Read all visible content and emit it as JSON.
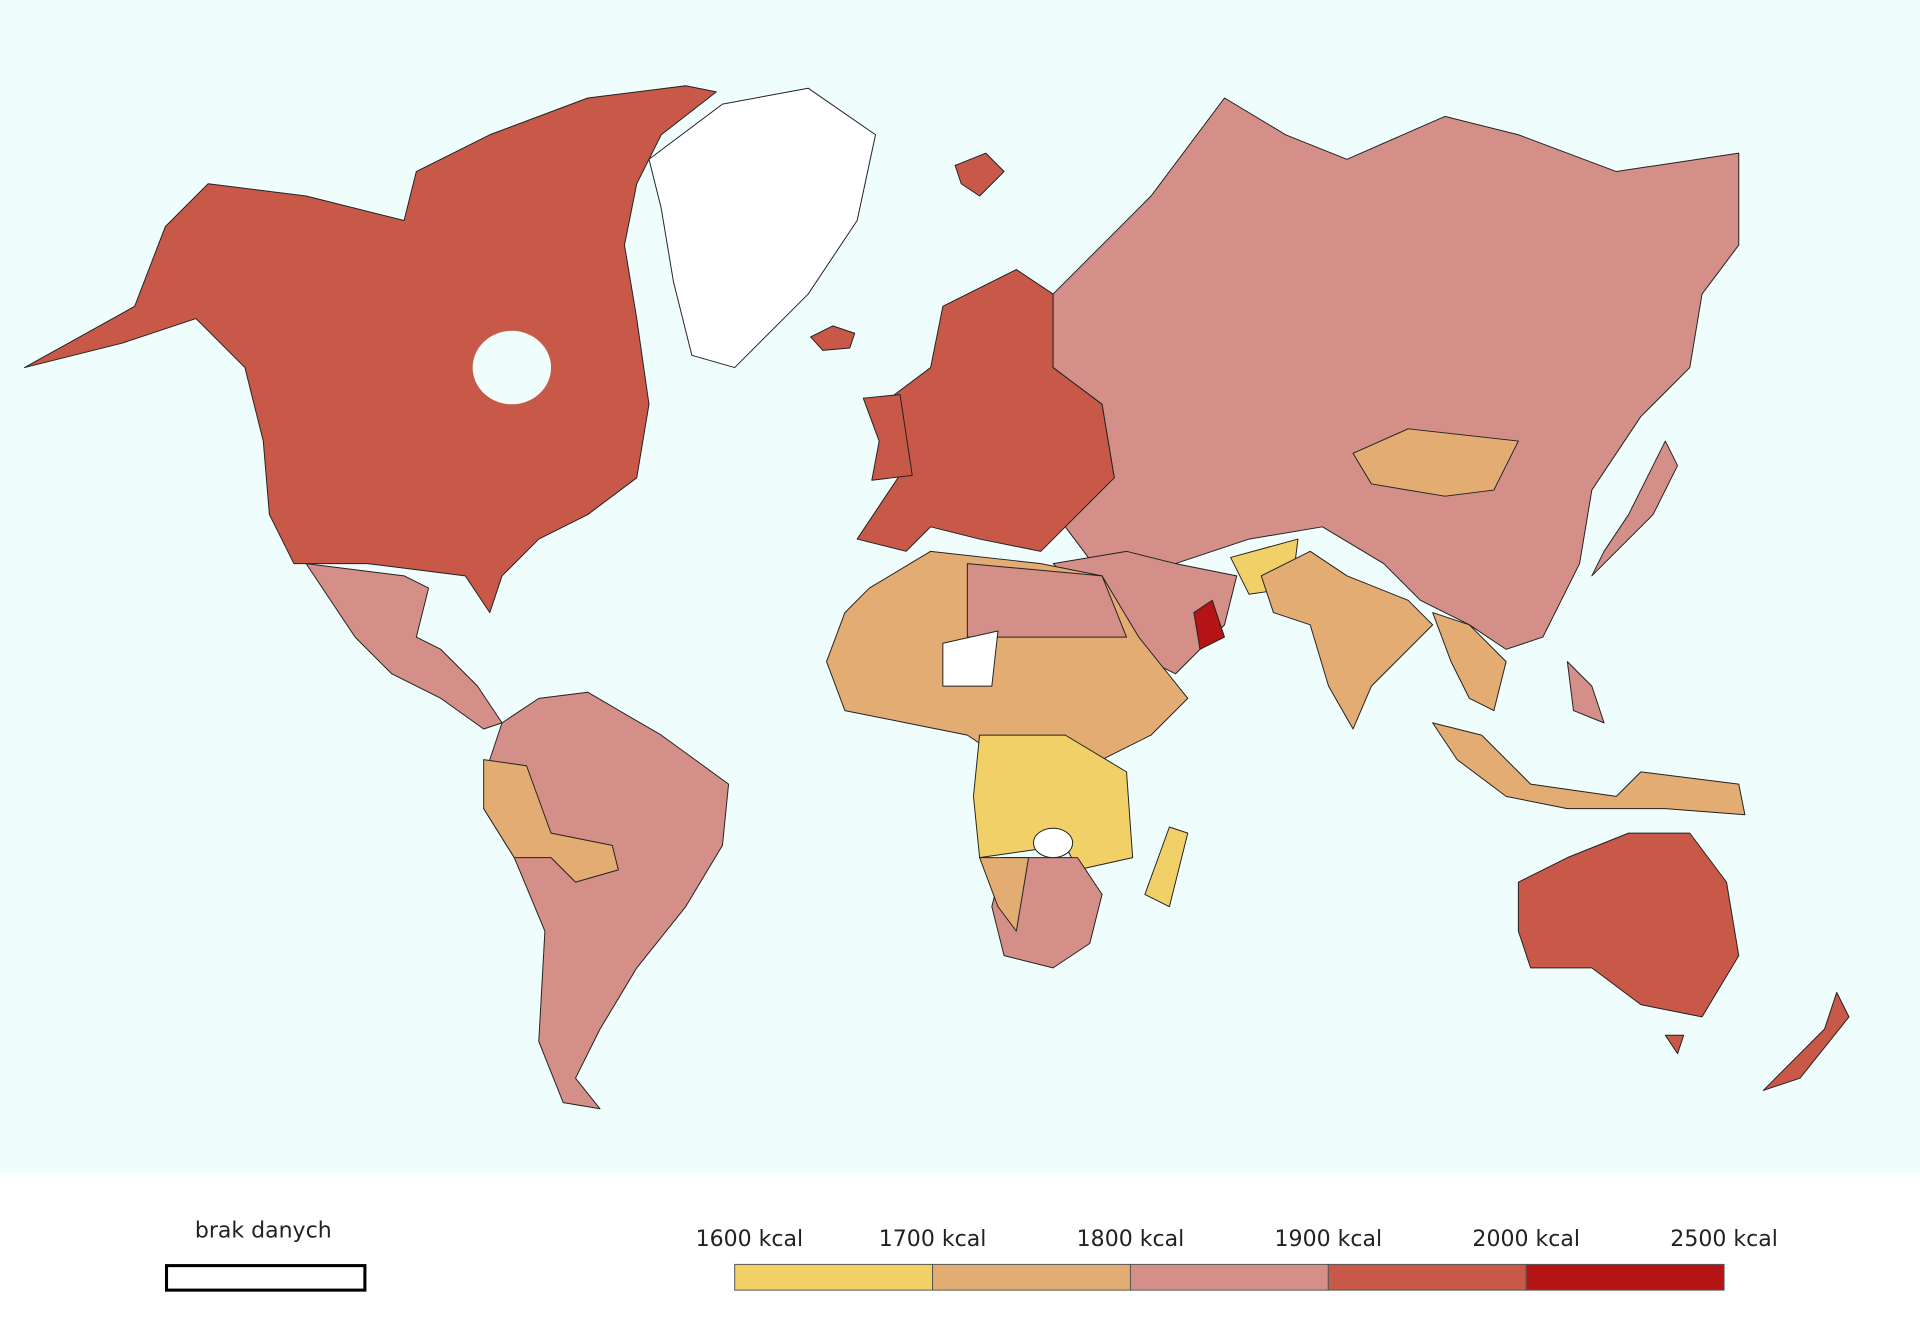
{
  "legend": {
    "no_data": "brak danych",
    "bins": [
      {
        "value": 1600,
        "label": "1600 kcal"
      },
      {
        "value": 1700,
        "label": "1700 kcal"
      },
      {
        "value": 1800,
        "label": "1800 kcal"
      },
      {
        "value": 1900,
        "label": "1900 kcal"
      },
      {
        "value": 2000,
        "label": "2000 kcal"
      },
      {
        "value": 2500,
        "label": "2500 kcal"
      }
    ],
    "colors": [
      "#f1d067",
      "#e3ac72",
      "#d48f88",
      "#c85848",
      "#b51414"
    ]
  }
}
